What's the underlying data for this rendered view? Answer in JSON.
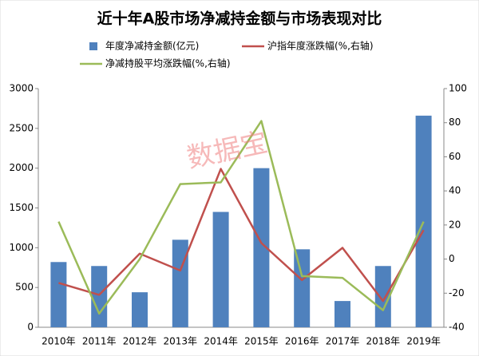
{
  "chart_data": {
    "type": "bar_line",
    "title": "近十年A股市场净减持金额与市场表现对比",
    "watermark": "数据宝",
    "categories": [
      "2010年",
      "2011年",
      "2012年",
      "2013年",
      "2014年",
      "2015年",
      "2016年",
      "2017年",
      "2018年",
      "2019年"
    ],
    "series": [
      {
        "name": "年度净减持金额(亿元)",
        "type": "bar",
        "axis": "y",
        "color": "#4f81bd",
        "values": [
          820,
          770,
          440,
          1100,
          1450,
          2000,
          980,
          330,
          770,
          2660
        ]
      },
      {
        "name": "沪指年度涨跌幅(%,右轴)",
        "type": "line",
        "axis": "y2",
        "color": "#c0504d",
        "values": [
          -14,
          -21,
          3.2,
          -6.7,
          52.9,
          9.4,
          -12.3,
          6.6,
          -24.6,
          17
        ]
      },
      {
        "name": "净减持股平均涨跌幅(%,右轴)",
        "type": "line",
        "axis": "y2",
        "color": "#9bbb59",
        "values": [
          22,
          -32,
          0,
          44,
          45,
          81,
          -10,
          -11,
          -30,
          22
        ]
      }
    ],
    "ylim": [
      0,
      3000
    ],
    "yticks": [
      0,
      500,
      1000,
      1500,
      2000,
      2500,
      3000
    ],
    "y2lim": [
      -40,
      100
    ],
    "y2ticks": [
      -40,
      -20,
      0,
      20,
      40,
      60,
      80,
      100
    ],
    "grid": false
  }
}
